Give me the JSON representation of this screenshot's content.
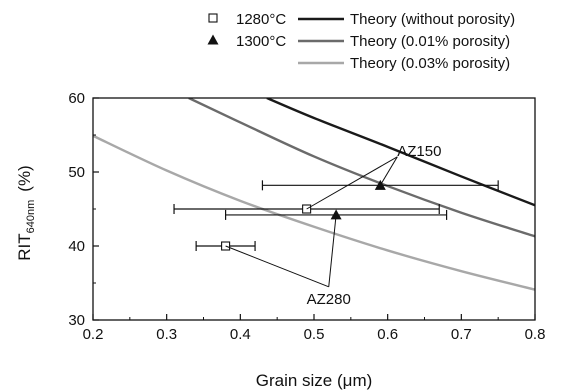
{
  "chart_data": {
    "type": "line",
    "xlabel": "Grain size (μm)",
    "ylabel_main": "RIT",
    "ylabel_sub": "640nm",
    "ylabel_unit": "(%)",
    "xlim": [
      0.2,
      0.8
    ],
    "ylim": [
      30,
      60
    ],
    "xticks": [
      "0.2",
      "0.3",
      "0.4",
      "0.5",
      "0.6",
      "0.7",
      "0.8"
    ],
    "yticks": [
      "30",
      "40",
      "50",
      "60"
    ],
    "grid": false,
    "legend": {
      "placement": "top",
      "markers": [
        {
          "label": "1280°C",
          "symbol": "open-square"
        },
        {
          "label": "1300°C",
          "symbol": "filled-triangle"
        }
      ],
      "lines": [
        {
          "label": "Theory (without porosity)",
          "color": "#1a1a1a"
        },
        {
          "label": "Theory (0.01% porosity)",
          "color": "#6b6b6b"
        },
        {
          "label": "Theory (0.03% porosity)",
          "color": "#a8a8a8"
        }
      ]
    },
    "series": [
      {
        "name": "Theory (without porosity)",
        "color": "#1a1a1a",
        "x": [
          0.436,
          0.5,
          0.6,
          0.7,
          0.8
        ],
        "y": [
          60,
          57.3,
          53.4,
          49.4,
          45.5
        ]
      },
      {
        "name": "Theory (0.01% porosity)",
        "color": "#6b6b6b",
        "x": [
          0.33,
          0.4,
          0.5,
          0.6,
          0.7,
          0.8
        ],
        "y": [
          60,
          56.7,
          52.1,
          48.1,
          44.5,
          41.3
        ]
      },
      {
        "name": "Theory (0.03% porosity)",
        "color": "#a8a8a8",
        "x": [
          0.2,
          0.3,
          0.4,
          0.5,
          0.6,
          0.7,
          0.8
        ],
        "y": [
          54.9,
          50.2,
          46.1,
          42.6,
          39.4,
          36.6,
          34.1
        ]
      }
    ],
    "points": [
      {
        "group": "1280°C",
        "symbol": "open-square",
        "x": 0.38,
        "y": 40,
        "xerr": [
          0.34,
          0.42
        ]
      },
      {
        "group": "1280°C",
        "symbol": "open-square",
        "x": 0.49,
        "y": 45,
        "xerr": [
          0.31,
          0.67
        ]
      },
      {
        "group": "1300°C",
        "symbol": "filled-triangle",
        "x": 0.53,
        "y": 44.2,
        "xerr": [
          0.38,
          0.68
        ]
      },
      {
        "group": "1300°C",
        "symbol": "filled-triangle",
        "x": 0.59,
        "y": 48.2,
        "xerr": [
          0.43,
          0.75
        ]
      }
    ],
    "annotations": [
      {
        "text": "AZ150",
        "x": 0.643,
        "y": 53,
        "targets": [
          [
            0.49,
            45
          ],
          [
            0.59,
            48.2
          ]
        ]
      },
      {
        "text": "AZ280",
        "x": 0.52,
        "y": 33,
        "targets": [
          [
            0.38,
            40
          ],
          [
            0.53,
            44.2
          ]
        ]
      }
    ]
  }
}
